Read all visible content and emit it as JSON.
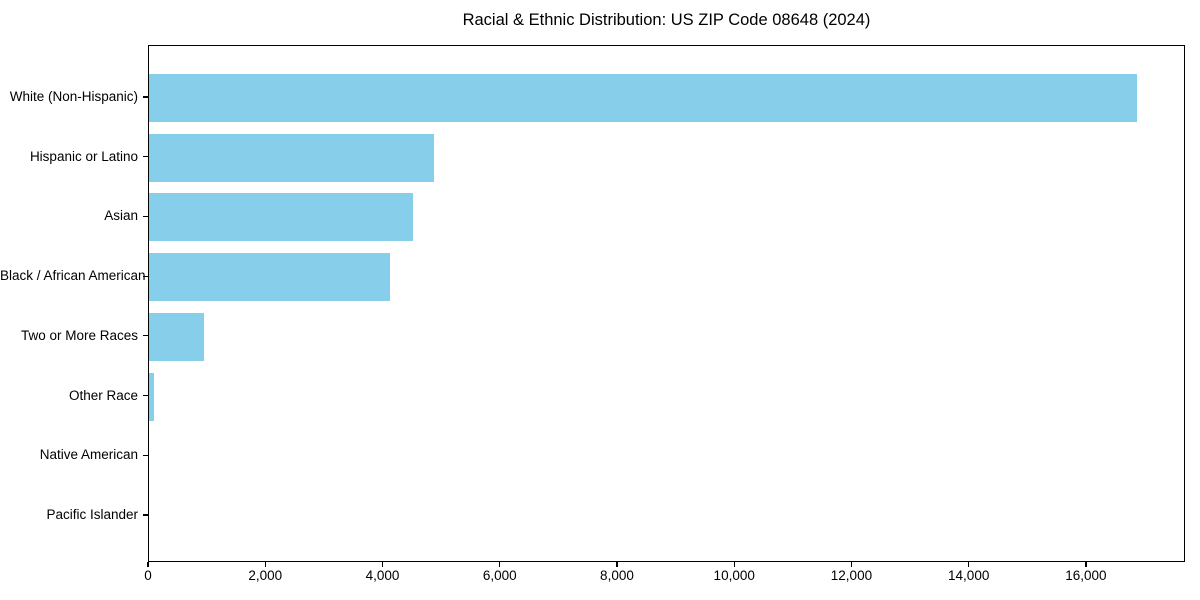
{
  "chart_data": {
    "type": "bar",
    "orientation": "horizontal",
    "title": "Racial & Ethnic Distribution: US ZIP Code 08648 (2024)",
    "categories": [
      "White (Non-Hispanic)",
      "Hispanic or Latino",
      "Asian",
      "Black / African American",
      "Two or More Races",
      "Other Race",
      "Native American",
      "Pacific Islander"
    ],
    "values": [
      16850,
      4860,
      4500,
      4110,
      940,
      85,
      0,
      0
    ],
    "xlabel": "",
    "ylabel": "",
    "xlim": [
      0,
      17690
    ],
    "x_ticks": [
      0,
      2000,
      4000,
      6000,
      8000,
      10000,
      12000,
      14000,
      16000
    ],
    "x_tick_labels": [
      "0",
      "2,000",
      "4,000",
      "6,000",
      "8,000",
      "10,000",
      "12,000",
      "14,000",
      "16,000"
    ],
    "bar_color": "#87CEEB",
    "grid": false,
    "legend": "none",
    "background_color": "#ffffff",
    "text_color": "#000000"
  }
}
